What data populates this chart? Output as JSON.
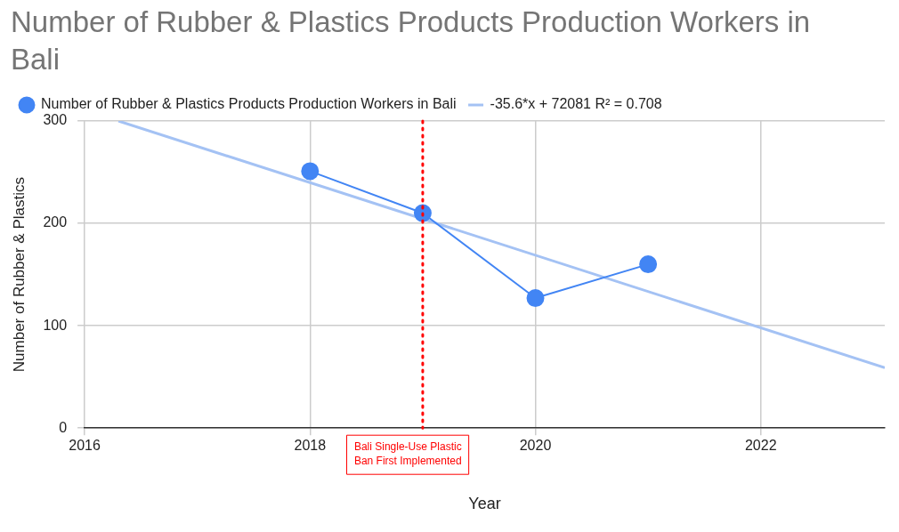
{
  "chart_data": {
    "type": "line",
    "title": "Number of Rubber & Plastics Products Production Workers in Bali",
    "xlabel": "Year",
    "ylabel": "Number of Rubber & Plastics",
    "x": [
      2018,
      2019,
      2020,
      2021
    ],
    "series": [
      {
        "name": "Number of Rubber & Plastics Products Production Workers in Bali",
        "color": "#4285f4",
        "values": [
          251,
          210,
          127,
          160
        ],
        "marker": "circle"
      },
      {
        "name": "-35.6*x + 72081 R² = 0.708",
        "type": "line",
        "color": "#a4c2f4",
        "x": [
          2016.3,
          2023.1
        ],
        "values": [
          300,
          59
        ],
        "marker": "none"
      }
    ],
    "xlim": [
      2016,
      2023.1
    ],
    "xticks": [
      2016,
      2018,
      2020,
      2022
    ],
    "ylim": [
      0,
      300
    ],
    "yticks": [
      0,
      100,
      200,
      300
    ],
    "grid": true,
    "legend": "top left",
    "ref_lines": [
      {
        "axis": "x",
        "value": 2019,
        "label": "Bali Single-Use Plastic Ban First Implemented",
        "color": "#ff0000",
        "line_style": "dotted"
      }
    ]
  }
}
